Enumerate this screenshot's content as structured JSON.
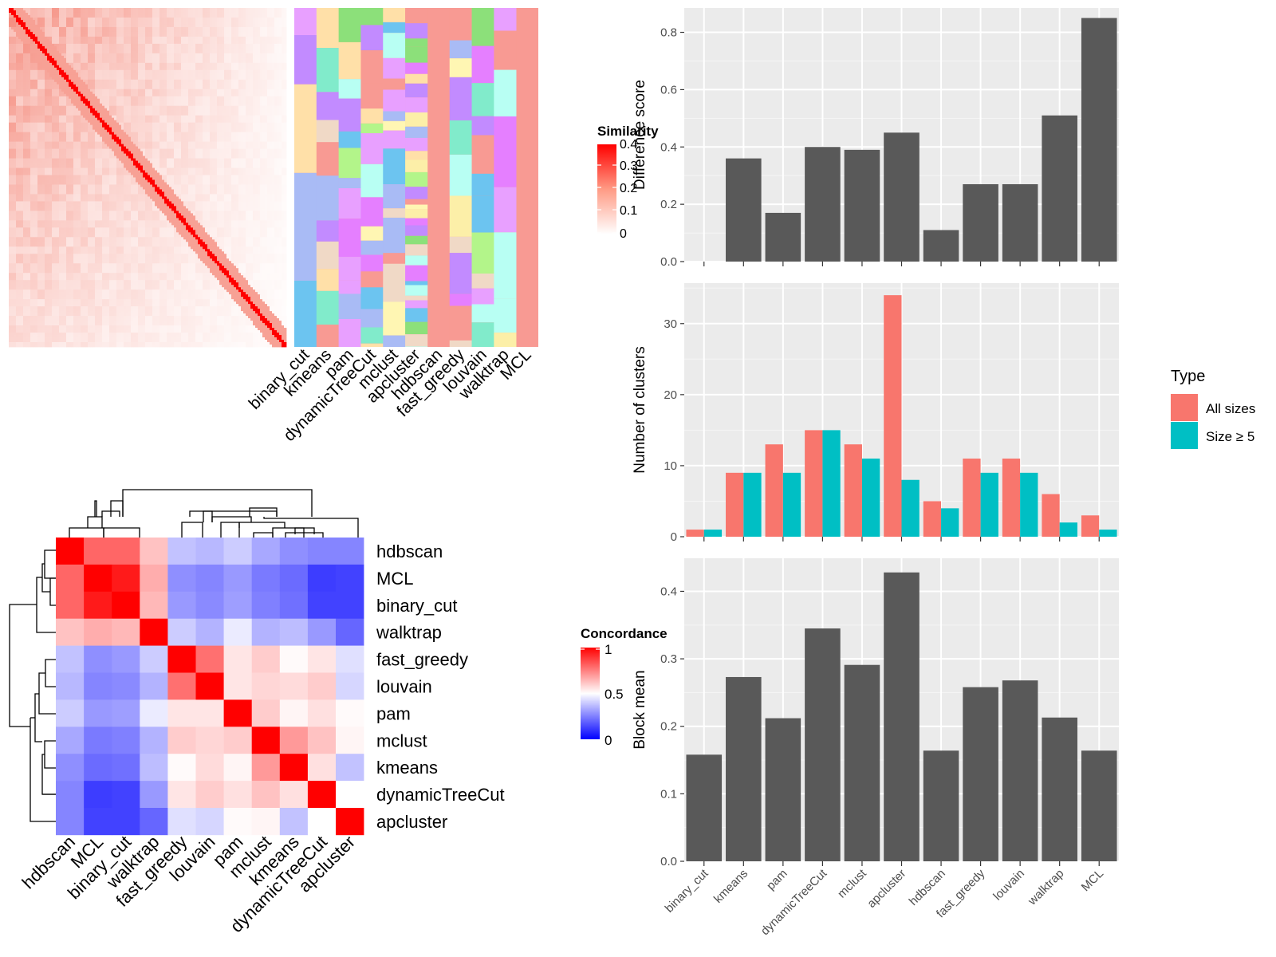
{
  "colors": {
    "panel_bg": "#EBEBEB",
    "bar_dark": "#595959",
    "all_sizes": "#F8766D",
    "size_ge5": "#00BFC4",
    "similarity_high": "#FF0000",
    "concordance_low": "#0000FF",
    "concordance_mid": "#FFFFFF",
    "concordance_high": "#FF0000",
    "membership_default": "#F89A93",
    "membership_palette": [
      "#F89A93",
      "#FCEFA8",
      "#FFF6B3",
      "#C28BFF",
      "#E57FFF",
      "#6CC4F0",
      "#B3F58A",
      "#81EBCB",
      "#A9BBF5",
      "#F0D9C6",
      "#B8FFF3",
      "#FFE0A8",
      "#E8A0FF",
      "#8CE07A"
    ]
  },
  "methods": [
    "binary_cut",
    "kmeans",
    "pam",
    "dynamicTreeCut",
    "mclust",
    "apcluster",
    "hdbscan",
    "fast_greedy",
    "louvain",
    "walktrap",
    "MCL"
  ],
  "similarity_legend": {
    "title": "Similarity",
    "ticks": [
      "0.4",
      "0.3",
      "0.2",
      "0.1",
      "0"
    ]
  },
  "concordance_legend": {
    "title": "Concordance",
    "ticks": [
      "1",
      "0.5",
      "0"
    ]
  },
  "concordance_order": [
    "hdbscan",
    "MCL",
    "binary_cut",
    "walktrap",
    "fast_greedy",
    "louvain",
    "pam",
    "mclust",
    "kmeans",
    "dynamicTreeCut",
    "apcluster"
  ],
  "concordance_matrix": [
    [
      1.0,
      0.8,
      0.8,
      0.62,
      0.38,
      0.36,
      0.4,
      0.33,
      0.28,
      0.26,
      0.26
    ],
    [
      0.8,
      1.0,
      0.95,
      0.66,
      0.28,
      0.26,
      0.3,
      0.24,
      0.21,
      0.12,
      0.13
    ],
    [
      0.8,
      0.95,
      1.0,
      0.64,
      0.3,
      0.27,
      0.31,
      0.25,
      0.22,
      0.13,
      0.13
    ],
    [
      0.62,
      0.66,
      0.64,
      1.0,
      0.4,
      0.35,
      0.46,
      0.35,
      0.37,
      0.3,
      0.2
    ],
    [
      0.38,
      0.28,
      0.3,
      0.4,
      1.0,
      0.78,
      0.55,
      0.6,
      0.51,
      0.55,
      0.44
    ],
    [
      0.36,
      0.26,
      0.27,
      0.35,
      0.78,
      1.0,
      0.55,
      0.58,
      0.57,
      0.6,
      0.42
    ],
    [
      0.4,
      0.3,
      0.31,
      0.46,
      0.55,
      0.55,
      1.0,
      0.6,
      0.52,
      0.56,
      0.51
    ],
    [
      0.33,
      0.24,
      0.25,
      0.35,
      0.6,
      0.58,
      0.6,
      1.0,
      0.7,
      0.62,
      0.52
    ],
    [
      0.28,
      0.21,
      0.22,
      0.37,
      0.51,
      0.57,
      0.52,
      0.7,
      1.0,
      0.56,
      0.38
    ],
    [
      0.26,
      0.12,
      0.13,
      0.3,
      0.55,
      0.6,
      0.56,
      0.62,
      0.56,
      1.0,
      0.5
    ],
    [
      0.26,
      0.13,
      0.13,
      0.2,
      0.44,
      0.42,
      0.51,
      0.52,
      0.38,
      0.5,
      1.0
    ]
  ],
  "chart_data": [
    {
      "type": "bar",
      "ylabel": "Difference score",
      "categories": [
        "binary_cut",
        "kmeans",
        "pam",
        "dynamicTreeCut",
        "mclust",
        "apcluster",
        "hdbscan",
        "fast_greedy",
        "louvain",
        "walktrap",
        "MCL"
      ],
      "values": [
        0.0,
        0.36,
        0.17,
        0.4,
        0.39,
        0.45,
        0.11,
        0.27,
        0.27,
        0.51,
        0.85
      ],
      "ylim": [
        0,
        0.885
      ],
      "yticks": [
        0.0,
        0.2,
        0.4,
        0.6,
        0.8
      ],
      "ytick_labels": [
        "0.0",
        "0.2",
        "0.4",
        "0.6",
        "0.8"
      ],
      "grid": true
    },
    {
      "type": "bar",
      "ylabel": "Number of clusters",
      "categories": [
        "binary_cut",
        "kmeans",
        "pam",
        "dynamicTreeCut",
        "mclust",
        "apcluster",
        "hdbscan",
        "fast_greedy",
        "louvain",
        "walktrap",
        "MCL"
      ],
      "series": [
        {
          "name": "All sizes",
          "values": [
            1,
            9,
            13,
            15,
            13,
            34,
            5,
            11,
            11,
            6,
            3
          ]
        },
        {
          "name": "Size ≥ 5",
          "values": [
            1,
            9,
            9,
            15,
            11,
            8,
            4,
            9,
            9,
            2,
            1
          ]
        }
      ],
      "ylim": [
        0,
        35.7
      ],
      "yticks": [
        0,
        10,
        20,
        30
      ],
      "ytick_labels": [
        "0",
        "10",
        "20",
        "30"
      ],
      "legend": {
        "title": "Type",
        "position": "right",
        "labels": [
          "All sizes",
          "Size ≥ 5"
        ]
      },
      "grid": true
    },
    {
      "type": "bar",
      "ylabel": "Block mean",
      "categories": [
        "binary_cut",
        "kmeans",
        "pam",
        "dynamicTreeCut",
        "mclust",
        "apcluster",
        "hdbscan",
        "fast_greedy",
        "louvain",
        "walktrap",
        "MCL"
      ],
      "values": [
        0.158,
        0.273,
        0.212,
        0.345,
        0.291,
        0.428,
        0.164,
        0.258,
        0.268,
        0.213,
        0.164
      ],
      "ylim": [
        0,
        0.449
      ],
      "yticks": [
        0.0,
        0.1,
        0.2,
        0.3,
        0.4
      ],
      "ytick_labels": [
        "0.0",
        "0.1",
        "0.2",
        "0.3",
        "0.4"
      ],
      "grid": true
    }
  ]
}
